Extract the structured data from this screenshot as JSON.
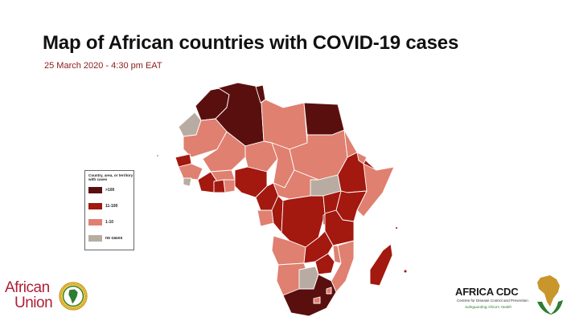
{
  "header": {
    "title": "Map of African countries with COVID-19 cases",
    "subtitle": "25 March 2020 - 4:30 pm EAT"
  },
  "legend": {
    "title": "Country, area, or territory with cases",
    "items": [
      {
        "label": ">100",
        "color": "#5a0f0f"
      },
      {
        "label": "11-100",
        "color": "#a3180f"
      },
      {
        "label": "1-10",
        "color": "#e08070"
      },
      {
        "label": "no cases",
        "color": "#b8aca2"
      }
    ]
  },
  "colors": {
    "border": "#ffffff",
    "accent": "#8b1a1a"
  },
  "logos": {
    "african_union": {
      "line1": "African",
      "line2": "Union",
      "emblem_icon": "african-union-emblem-icon"
    },
    "africa_cdc": {
      "title": "AFRICA CDC",
      "line1": "Centres for Disease Control and Prevention",
      "line2": "Safeguarding Africa's Health",
      "emblem_icon": "africa-cdc-emblem-icon"
    }
  }
}
